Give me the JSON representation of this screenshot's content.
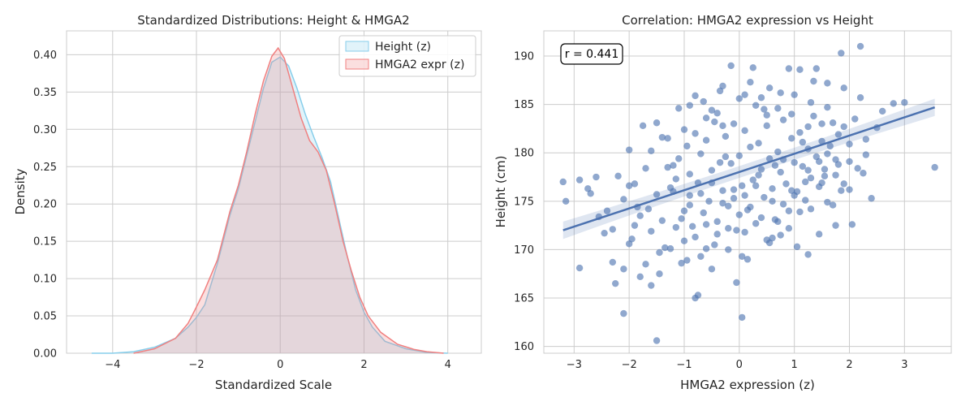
{
  "chart_data": [
    {
      "type": "area",
      "title": "Standardized Distributions: Height & HMGA2",
      "xlabel": "Standardized Scale",
      "ylabel": "Density",
      "xlim": [
        -5.1,
        4.8
      ],
      "ylim": [
        0,
        0.432
      ],
      "xticks": [
        -4,
        -2,
        0,
        2,
        4
      ],
      "xtick_labels": [
        "−4",
        "−2",
        "0",
        "2",
        "4"
      ],
      "yticks": [
        0,
        0.05,
        0.1,
        0.15,
        0.2,
        0.25,
        0.3,
        0.35,
        0.4
      ],
      "ytick_labels": [
        "0.00",
        "0.05",
        "0.10",
        "0.15",
        "0.20",
        "0.25",
        "0.30",
        "0.35",
        "0.40"
      ],
      "grid": true,
      "legend_position": "top-right",
      "series": [
        {
          "name": "Height (z)",
          "color": "#87ceeb",
          "points": [
            [
              -4.5,
              0.0
            ],
            [
              -4.0,
              0.0
            ],
            [
              -3.5,
              0.002
            ],
            [
              -3.0,
              0.008
            ],
            [
              -2.5,
              0.02
            ],
            [
              -2.2,
              0.035
            ],
            [
              -2.0,
              0.048
            ],
            [
              -1.8,
              0.065
            ],
            [
              -1.5,
              0.12
            ],
            [
              -1.2,
              0.185
            ],
            [
              -1.0,
              0.22
            ],
            [
              -0.8,
              0.265
            ],
            [
              -0.6,
              0.31
            ],
            [
              -0.4,
              0.355
            ],
            [
              -0.2,
              0.39
            ],
            [
              0.0,
              0.397
            ],
            [
              0.2,
              0.385
            ],
            [
              0.4,
              0.355
            ],
            [
              0.6,
              0.32
            ],
            [
              0.8,
              0.29
            ],
            [
              1.0,
              0.262
            ],
            [
              1.2,
              0.23
            ],
            [
              1.4,
              0.18
            ],
            [
              1.6,
              0.13
            ],
            [
              1.8,
              0.085
            ],
            [
              2.0,
              0.055
            ],
            [
              2.2,
              0.035
            ],
            [
              2.5,
              0.016
            ],
            [
              3.0,
              0.006
            ],
            [
              3.5,
              0.001
            ],
            [
              4.0,
              0.0
            ]
          ]
        },
        {
          "name": "HMGA2 expr (z)",
          "color": "#f08080",
          "points": [
            [
              -3.5,
              0.0
            ],
            [
              -3.0,
              0.006
            ],
            [
              -2.5,
              0.02
            ],
            [
              -2.2,
              0.04
            ],
            [
              -2.0,
              0.062
            ],
            [
              -1.8,
              0.085
            ],
            [
              -1.5,
              0.125
            ],
            [
              -1.2,
              0.19
            ],
            [
              -1.0,
              0.225
            ],
            [
              -0.8,
              0.27
            ],
            [
              -0.6,
              0.32
            ],
            [
              -0.4,
              0.365
            ],
            [
              -0.2,
              0.398
            ],
            [
              -0.05,
              0.409
            ],
            [
              0.1,
              0.395
            ],
            [
              0.3,
              0.355
            ],
            [
              0.5,
              0.315
            ],
            [
              0.7,
              0.285
            ],
            [
              0.9,
              0.27
            ],
            [
              1.1,
              0.245
            ],
            [
              1.3,
              0.2
            ],
            [
              1.5,
              0.15
            ],
            [
              1.7,
              0.11
            ],
            [
              1.9,
              0.075
            ],
            [
              2.1,
              0.05
            ],
            [
              2.4,
              0.028
            ],
            [
              2.8,
              0.012
            ],
            [
              3.2,
              0.005
            ],
            [
              3.5,
              0.002
            ],
            [
              3.9,
              0.0
            ]
          ]
        }
      ]
    },
    {
      "type": "scatter",
      "title": "Correlation: HMGA2 expression vs Height",
      "xlabel": "HMGA2 expression (z)",
      "ylabel": "Height (cm)",
      "xlim": [
        -3.55,
        3.85
      ],
      "ylim": [
        159.3,
        192.6
      ],
      "xticks": [
        -3,
        -2,
        -1,
        0,
        1,
        2,
        3
      ],
      "xtick_labels": [
        "−3",
        "−2",
        "−1",
        "0",
        "1",
        "2",
        "3"
      ],
      "yticks": [
        160,
        165,
        170,
        175,
        180,
        185,
        190
      ],
      "ytick_labels": [
        "160",
        "165",
        "170",
        "175",
        "180",
        "185",
        "190"
      ],
      "grid": true,
      "annotation": "r = 0.441",
      "color": "#4c72b0",
      "regression": {
        "x": [
          -3.2,
          3.55
        ],
        "y": [
          172.0,
          184.7
        ],
        "ci_halfwidth_ends": 0.9
      },
      "points": [
        [
          -3.2,
          177.0
        ],
        [
          -3.15,
          175.0
        ],
        [
          -2.9,
          177.2
        ],
        [
          -2.7,
          175.8
        ],
        [
          -2.6,
          177.5
        ],
        [
          -2.9,
          168.1
        ],
        [
          -2.3,
          168.7
        ],
        [
          -2.25,
          166.5
        ],
        [
          -2.1,
          163.4
        ],
        [
          -2.1,
          168.0
        ],
        [
          -2.0,
          180.3
        ],
        [
          -2.0,
          176.6
        ],
        [
          -1.9,
          172.5
        ],
        [
          -1.85,
          174.4
        ],
        [
          -1.8,
          167.2
        ],
        [
          -1.75,
          182.8
        ],
        [
          -1.7,
          168.5
        ],
        [
          -1.6,
          166.3
        ],
        [
          -1.5,
          160.6
        ],
        [
          -1.45,
          167.5
        ],
        [
          -1.4,
          181.6
        ],
        [
          -1.3,
          181.5
        ],
        [
          -1.25,
          170.1
        ],
        [
          -1.2,
          178.7
        ],
        [
          -1.1,
          184.6
        ],
        [
          -1.05,
          168.6
        ],
        [
          -1.0,
          174.0
        ],
        [
          -0.9,
          175.6
        ],
        [
          -0.9,
          184.9
        ],
        [
          -0.8,
          165.0
        ],
        [
          -0.75,
          165.3
        ],
        [
          -0.7,
          169.3
        ],
        [
          -0.65,
          185.3
        ],
        [
          -0.6,
          170.1
        ],
        [
          -0.5,
          168.0
        ],
        [
          -0.4,
          184.1
        ],
        [
          -0.35,
          186.4
        ],
        [
          -0.3,
          186.9
        ],
        [
          -0.2,
          170.0
        ],
        [
          -0.15,
          189.0
        ],
        [
          -0.1,
          176.2
        ],
        [
          -0.05,
          166.6
        ],
        [
          0.0,
          185.6
        ],
        [
          0.05,
          163.0
        ],
        [
          0.1,
          175.6
        ],
        [
          0.15,
          169.0
        ],
        [
          0.25,
          188.8
        ],
        [
          0.3,
          184.9
        ],
        [
          0.45,
          184.5
        ],
        [
          0.55,
          186.7
        ],
        [
          0.6,
          171.2
        ],
        [
          0.75,
          186.2
        ],
        [
          0.75,
          171.5
        ],
        [
          0.9,
          188.7
        ],
        [
          0.95,
          184.0
        ],
        [
          1.1,
          188.6
        ],
        [
          1.25,
          169.5
        ],
        [
          1.25,
          182.7
        ],
        [
          1.35,
          187.4
        ],
        [
          1.4,
          188.7
        ],
        [
          1.5,
          183.0
        ],
        [
          1.6,
          187.2
        ],
        [
          1.7,
          174.6
        ],
        [
          1.75,
          172.5
        ],
        [
          1.85,
          190.3
        ],
        [
          1.9,
          176.8
        ],
        [
          1.9,
          186.7
        ],
        [
          2.0,
          179.1
        ],
        [
          2.0,
          176.2
        ],
        [
          2.05,
          172.6
        ],
        [
          2.2,
          185.7
        ],
        [
          2.2,
          191.0
        ],
        [
          2.25,
          177.9
        ],
        [
          2.3,
          179.8
        ],
        [
          2.4,
          175.3
        ],
        [
          2.5,
          182.6
        ],
        [
          2.6,
          184.3
        ],
        [
          2.8,
          185.1
        ],
        [
          3.0,
          185.2
        ],
        [
          3.55,
          178.5
        ],
        [
          -1.3,
          178.5
        ],
        [
          -1.2,
          176.0
        ],
        [
          -1.1,
          179.4
        ],
        [
          -1.05,
          173.2
        ],
        [
          -0.95,
          180.7
        ],
        [
          -0.9,
          177.8
        ],
        [
          -0.85,
          172.4
        ],
        [
          -0.8,
          182.0
        ],
        [
          -0.75,
          176.9
        ],
        [
          -0.7,
          179.9
        ],
        [
          -0.65,
          173.8
        ],
        [
          -0.6,
          181.3
        ],
        [
          -0.55,
          175.0
        ],
        [
          -0.5,
          178.2
        ],
        [
          -0.45,
          183.2
        ],
        [
          -0.4,
          172.9
        ],
        [
          -0.35,
          179.0
        ],
        [
          -0.3,
          176.1
        ],
        [
          -0.25,
          181.7
        ],
        [
          -0.2,
          174.5
        ],
        [
          -0.15,
          178.9
        ],
        [
          -0.1,
          183.0
        ],
        [
          -0.05,
          172.0
        ],
        [
          0.0,
          179.7
        ],
        [
          0.05,
          176.6
        ],
        [
          0.1,
          182.3
        ],
        [
          0.15,
          174.1
        ],
        [
          0.2,
          180.6
        ],
        [
          0.25,
          177.2
        ],
        [
          0.3,
          172.7
        ],
        [
          0.35,
          181.0
        ],
        [
          0.4,
          178.3
        ],
        [
          0.45,
          175.4
        ],
        [
          0.5,
          182.8
        ],
        [
          0.55,
          179.4
        ],
        [
          0.6,
          176.3
        ],
        [
          0.65,
          173.1
        ],
        [
          0.7,
          180.1
        ],
        [
          0.75,
          178.0
        ],
        [
          0.8,
          183.4
        ],
        [
          0.85,
          176.8
        ],
        [
          0.9,
          174.0
        ],
        [
          0.95,
          181.5
        ],
        [
          1.0,
          179.0
        ],
        [
          1.05,
          176.0
        ],
        [
          1.1,
          182.1
        ],
        [
          1.15,
          178.6
        ],
        [
          1.2,
          175.1
        ],
        [
          1.25,
          180.4
        ],
        [
          1.3,
          177.4
        ],
        [
          1.35,
          183.8
        ],
        [
          1.4,
          179.6
        ],
        [
          1.45,
          176.5
        ],
        [
          1.5,
          181.2
        ],
        [
          1.55,
          178.3
        ],
        [
          1.6,
          174.9
        ],
        [
          1.65,
          180.7
        ],
        [
          1.7,
          183.1
        ],
        [
          1.75,
          177.7
        ],
        [
          1.8,
          181.9
        ],
        [
          -2.4,
          174.0
        ],
        [
          -2.3,
          172.1
        ],
        [
          -2.2,
          177.6
        ],
        [
          -2.1,
          175.2
        ],
        [
          -2.0,
          170.6
        ],
        [
          -1.9,
          176.8
        ],
        [
          -1.8,
          173.5
        ],
        [
          -1.7,
          178.4
        ],
        [
          -1.6,
          171.9
        ],
        [
          -1.5,
          175.7
        ],
        [
          -1.4,
          173.0
        ],
        [
          -1.35,
          170.2
        ],
        [
          -1.25,
          176.4
        ],
        [
          -1.15,
          172.3
        ],
        [
          -1.0,
          170.9
        ],
        [
          -0.9,
          174.6
        ],
        [
          -0.8,
          171.3
        ],
        [
          -0.7,
          175.8
        ],
        [
          -0.6,
          172.6
        ],
        [
          -0.5,
          176.9
        ],
        [
          -0.4,
          171.6
        ],
        [
          -0.3,
          174.8
        ],
        [
          -0.2,
          172.2
        ],
        [
          -0.1,
          175.3
        ],
        [
          0.0,
          173.6
        ],
        [
          0.1,
          171.8
        ],
        [
          0.2,
          174.4
        ],
        [
          0.3,
          176.6
        ],
        [
          0.4,
          173.3
        ],
        [
          0.5,
          171.0
        ],
        [
          0.6,
          175.0
        ],
        [
          0.7,
          172.9
        ],
        [
          0.8,
          174.7
        ],
        [
          0.9,
          172.2
        ],
        [
          1.0,
          175.6
        ],
        [
          1.1,
          173.9
        ],
        [
          1.2,
          177.0
        ],
        [
          1.3,
          174.2
        ],
        [
          1.5,
          176.9
        ],
        [
          1.6,
          179.9
        ],
        [
          1.8,
          178.8
        ],
        [
          1.9,
          182.7
        ],
        [
          2.0,
          180.9
        ],
        [
          2.1,
          183.5
        ],
        [
          2.3,
          181.4
        ],
        [
          -0.8,
          185.9
        ],
        [
          -0.5,
          184.4
        ],
        [
          -0.3,
          182.8
        ],
        [
          0.1,
          186.0
        ],
        [
          0.4,
          185.7
        ],
        [
          0.7,
          184.6
        ],
        [
          1.0,
          186.0
        ],
        [
          1.3,
          185.2
        ],
        [
          1.6,
          184.7
        ],
        [
          -1.6,
          180.2
        ],
        [
          -1.5,
          183.1
        ],
        [
          -1.0,
          182.4
        ],
        [
          -0.6,
          183.6
        ],
        [
          0.2,
          187.3
        ],
        [
          0.5,
          183.9
        ],
        [
          0.8,
          179.3
        ],
        [
          1.15,
          181.1
        ],
        [
          1.45,
          179.1
        ],
        [
          1.75,
          179.3
        ],
        [
          2.15,
          178.4
        ],
        [
          -1.95,
          171.1
        ],
        [
          -1.45,
          169.7
        ],
        [
          -0.95,
          168.9
        ],
        [
          -0.45,
          170.5
        ],
        [
          0.05,
          169.3
        ],
        [
          0.55,
          170.7
        ],
        [
          1.05,
          170.3
        ],
        [
          1.45,
          171.6
        ],
        [
          -2.55,
          173.4
        ],
        [
          -2.75,
          176.3
        ],
        [
          -2.45,
          171.7
        ],
        [
          -1.65,
          174.2
        ],
        [
          -1.15,
          177.3
        ],
        [
          -0.25,
          179.6
        ],
        [
          0.35,
          177.7
        ],
        [
          0.65,
          178.7
        ],
        [
          0.95,
          176.1
        ],
        [
          1.25,
          178.2
        ],
        [
          1.55,
          177.6
        ],
        [
          1.85,
          176.1
        ]
      ]
    }
  ]
}
